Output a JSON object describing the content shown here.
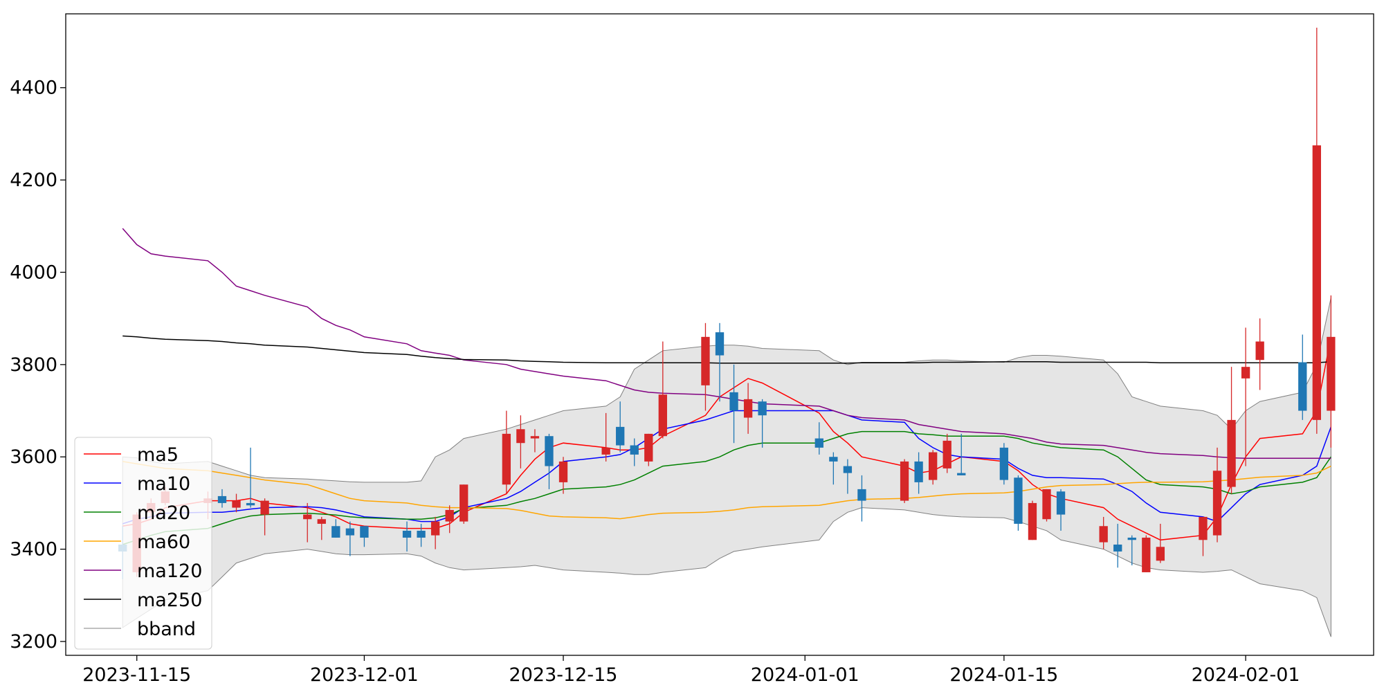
{
  "chart_data": {
    "type": "candlestick",
    "title": "",
    "xlabel": "",
    "ylabel": "",
    "ylim": [
      3170,
      4560
    ],
    "xlim": [
      "2023-11-10",
      "2024-02-10"
    ],
    "y_ticks": [
      3200,
      3400,
      3600,
      3800,
      4000,
      4200,
      4400
    ],
    "x_ticks": [
      "2023-11-15",
      "2023-12-01",
      "2023-12-15",
      "2024-01-01",
      "2024-01-15",
      "2024-02-01"
    ],
    "grid": false,
    "legend_position": "lower-left",
    "colors": {
      "up": "#d62728",
      "down": "#1f77b4",
      "ma5": "#ff0000",
      "ma10": "#0000ff",
      "ma20": "#008000",
      "ma60": "#ffa500",
      "ma120": "#800080",
      "ma250": "#000000",
      "bband_fill": "#d3d3d3",
      "bband_edge": "#808080"
    },
    "legend": [
      {
        "key": "ma5",
        "label": "ma5"
      },
      {
        "key": "ma10",
        "label": "ma10"
      },
      {
        "key": "ma20",
        "label": "ma20"
      },
      {
        "key": "ma60",
        "label": "ma60"
      },
      {
        "key": "ma120",
        "label": "ma120"
      },
      {
        "key": "ma250",
        "label": "ma250"
      },
      {
        "key": "bband",
        "label": "bband"
      }
    ],
    "dates": [
      "2023-11-14",
      "2023-11-15",
      "2023-11-16",
      "2023-11-17",
      "2023-11-20",
      "2023-11-21",
      "2023-11-22",
      "2023-11-23",
      "2023-11-24",
      "2023-11-27",
      "2023-11-28",
      "2023-11-29",
      "2023-11-30",
      "2023-12-01",
      "2023-12-04",
      "2023-12-05",
      "2023-12-06",
      "2023-12-07",
      "2023-12-08",
      "2023-12-11",
      "2023-12-12",
      "2023-12-13",
      "2023-12-14",
      "2023-12-15",
      "2023-12-18",
      "2023-12-19",
      "2023-12-20",
      "2023-12-21",
      "2023-12-22",
      "2023-12-25",
      "2023-12-26",
      "2023-12-27",
      "2023-12-28",
      "2023-12-29",
      "2024-01-02",
      "2024-01-03",
      "2024-01-04",
      "2024-01-05",
      "2024-01-08",
      "2024-01-09",
      "2024-01-10",
      "2024-01-11",
      "2024-01-12",
      "2024-01-15",
      "2024-01-16",
      "2024-01-17",
      "2024-01-18",
      "2024-01-19",
      "2024-01-22",
      "2024-01-23",
      "2024-01-24",
      "2024-01-25",
      "2024-01-26",
      "2024-01-29",
      "2024-01-30",
      "2024-01-31",
      "2024-02-01",
      "2024-02-02",
      "2024-02-05",
      "2024-02-06",
      "2024-02-07"
    ],
    "open": [
      3410,
      3350,
      3480,
      3500,
      3500,
      3515,
      3490,
      3500,
      3475,
      3465,
      3455,
      3450,
      3445,
      3450,
      3440,
      3440,
      3430,
      3460,
      3460,
      3540,
      3630,
      3640,
      3645,
      3545,
      3605,
      3665,
      3625,
      3590,
      3645,
      3755,
      3870,
      3740,
      3685,
      3720,
      3640,
      3600,
      3580,
      3530,
      3505,
      3590,
      3550,
      3575,
      3565,
      3620,
      3555,
      3420,
      3465,
      3525,
      3415,
      3410,
      3425,
      3350,
      3375,
      3420,
      3430,
      3535,
      3770,
      3810,
      3805,
      3680,
      3700
    ],
    "high": [
      3450,
      3480,
      3510,
      3535,
      3525,
      3530,
      3520,
      3620,
      3510,
      3500,
      3470,
      3465,
      3460,
      3450,
      3460,
      3455,
      3470,
      3495,
      3540,
      3700,
      3690,
      3660,
      3650,
      3600,
      3695,
      3720,
      3640,
      3650,
      3850,
      3890,
      3890,
      3800,
      3760,
      3725,
      3675,
      3610,
      3595,
      3560,
      3595,
      3610,
      3615,
      3650,
      3650,
      3630,
      3560,
      3505,
      3530,
      3530,
      3470,
      3455,
      3430,
      3430,
      3455,
      3470,
      3620,
      3795,
      3880,
      3900,
      3865,
      4530,
      3950
    ],
    "low": [
      3335,
      3340,
      3470,
      3495,
      3465,
      3490,
      3480,
      3490,
      3430,
      3415,
      3420,
      3425,
      3385,
      3405,
      3395,
      3405,
      3400,
      3435,
      3455,
      3520,
      3575,
      3610,
      3530,
      3520,
      3590,
      3610,
      3580,
      3580,
      3640,
      3700,
      3720,
      3630,
      3650,
      3620,
      3605,
      3540,
      3520,
      3460,
      3500,
      3520,
      3540,
      3565,
      3560,
      3540,
      3440,
      3420,
      3460,
      3440,
      3400,
      3360,
      3365,
      3350,
      3370,
      3385,
      3415,
      3520,
      3580,
      3745,
      3680,
      3650,
      3620
    ],
    "close": [
      3395,
      3475,
      3500,
      3525,
      3510,
      3500,
      3505,
      3495,
      3505,
      3475,
      3465,
      3425,
      3430,
      3425,
      3425,
      3425,
      3460,
      3485,
      3540,
      3650,
      3660,
      3645,
      3580,
      3590,
      3620,
      3625,
      3605,
      3650,
      3735,
      3860,
      3820,
      3700,
      3725,
      3690,
      3620,
      3590,
      3565,
      3505,
      3590,
      3545,
      3610,
      3635,
      3560,
      3550,
      3455,
      3500,
      3530,
      3475,
      3450,
      3395,
      3420,
      3425,
      3405,
      3470,
      3570,
      3680,
      3795,
      3850,
      3700,
      4275,
      3860
    ],
    "ma5": [
      3450,
      3455,
      3465,
      3490,
      3505,
      3505,
      3505,
      3510,
      3500,
      3490,
      3480,
      3470,
      3455,
      3450,
      3445,
      3445,
      3445,
      3455,
      3480,
      3520,
      3560,
      3595,
      3620,
      3630,
      3620,
      3615,
      3615,
      3620,
      3645,
      3690,
      3730,
      3750,
      3770,
      3760,
      3695,
      3655,
      3630,
      3600,
      3580,
      3565,
      3570,
      3585,
      3600,
      3590,
      3570,
      3540,
      3520,
      3510,
      3490,
      3465,
      3450,
      3435,
      3420,
      3430,
      3470,
      3540,
      3600,
      3640,
      3650,
      3700,
      3860
    ],
    "ma10": [
      3455,
      3465,
      3470,
      3478,
      3480,
      3480,
      3483,
      3487,
      3490,
      3492,
      3490,
      3485,
      3478,
      3470,
      3465,
      3460,
      3460,
      3470,
      3490,
      3510,
      3525,
      3545,
      3565,
      3590,
      3600,
      3605,
      3620,
      3640,
      3660,
      3680,
      3690,
      3700,
      3700,
      3700,
      3700,
      3700,
      3690,
      3680,
      3675,
      3640,
      3620,
      3605,
      3600,
      3595,
      3575,
      3560,
      3555,
      3555,
      3552,
      3540,
      3525,
      3500,
      3480,
      3470,
      3460,
      3490,
      3520,
      3540,
      3560,
      3580,
      3665
    ],
    "ma20": [
      3410,
      3420,
      3430,
      3438,
      3445,
      3455,
      3465,
      3472,
      3475,
      3478,
      3476,
      3474,
      3470,
      3468,
      3465,
      3465,
      3468,
      3475,
      3488,
      3495,
      3503,
      3510,
      3520,
      3530,
      3535,
      3540,
      3550,
      3565,
      3580,
      3590,
      3600,
      3615,
      3625,
      3630,
      3630,
      3640,
      3650,
      3655,
      3655,
      3650,
      3648,
      3645,
      3645,
      3645,
      3640,
      3630,
      3625,
      3620,
      3615,
      3600,
      3575,
      3550,
      3540,
      3535,
      3530,
      3520,
      3525,
      3535,
      3545,
      3555,
      3600
    ],
    "ma60": [
      3590,
      3585,
      3580,
      3575,
      3570,
      3565,
      3560,
      3555,
      3550,
      3540,
      3530,
      3520,
      3510,
      3505,
      3500,
      3495,
      3492,
      3490,
      3490,
      3488,
      3484,
      3478,
      3472,
      3470,
      3468,
      3466,
      3470,
      3475,
      3478,
      3480,
      3482,
      3485,
      3490,
      3492,
      3495,
      3500,
      3505,
      3508,
      3510,
      3512,
      3515,
      3518,
      3520,
      3522,
      3525,
      3530,
      3535,
      3538,
      3540,
      3542,
      3544,
      3545,
      3545,
      3546,
      3548,
      3550,
      3553,
      3556,
      3560,
      3565,
      3580
    ],
    "ma120": [
      4095,
      4060,
      4040,
      4035,
      4025,
      4000,
      3970,
      3960,
      3950,
      3925,
      3900,
      3885,
      3875,
      3860,
      3845,
      3830,
      3825,
      3820,
      3810,
      3800,
      3790,
      3785,
      3780,
      3775,
      3765,
      3755,
      3745,
      3740,
      3738,
      3735,
      3730,
      3725,
      3720,
      3715,
      3710,
      3700,
      3690,
      3685,
      3680,
      3670,
      3665,
      3660,
      3655,
      3650,
      3645,
      3640,
      3632,
      3628,
      3625,
      3620,
      3615,
      3610,
      3607,
      3603,
      3600,
      3598,
      3597,
      3597,
      3597,
      3597,
      3597
    ],
    "ma250": [
      3862,
      3860,
      3857,
      3855,
      3852,
      3850,
      3847,
      3845,
      3842,
      3838,
      3835,
      3832,
      3829,
      3826,
      3822,
      3818,
      3815,
      3813,
      3811,
      3810,
      3808,
      3807,
      3806,
      3805,
      3804,
      3804,
      3804,
      3804,
      3804,
      3804,
      3803,
      3803,
      3803,
      3803,
      3803,
      3803,
      3803,
      3804,
      3804,
      3804,
      3805,
      3805,
      3805,
      3806,
      3806,
      3806,
      3806,
      3805,
      3805,
      3805,
      3805,
      3805,
      3804,
      3804,
      3804,
      3804,
      3804,
      3804,
      3804,
      3804,
      3806
    ],
    "bb_upper": [
      3600,
      3598,
      3590,
      3585,
      3590,
      3580,
      3570,
      3560,
      3555,
      3552,
      3550,
      3548,
      3546,
      3545,
      3545,
      3548,
      3600,
      3615,
      3640,
      3660,
      3670,
      3680,
      3690,
      3700,
      3710,
      3730,
      3790,
      3810,
      3830,
      3840,
      3842,
      3842,
      3840,
      3835,
      3830,
      3810,
      3800,
      3805,
      3805,
      3808,
      3810,
      3810,
      3808,
      3805,
      3815,
      3820,
      3820,
      3818,
      3810,
      3780,
      3730,
      3720,
      3710,
      3700,
      3690,
      3660,
      3700,
      3720,
      3740,
      3800,
      3945
    ],
    "bb_lower": [
      3230,
      3250,
      3270,
      3290,
      3310,
      3340,
      3370,
      3380,
      3390,
      3400,
      3395,
      3390,
      3388,
      3388,
      3390,
      3385,
      3370,
      3360,
      3355,
      3360,
      3362,
      3365,
      3360,
      3355,
      3350,
      3348,
      3345,
      3345,
      3350,
      3360,
      3380,
      3395,
      3400,
      3405,
      3420,
      3460,
      3480,
      3490,
      3485,
      3480,
      3475,
      3472,
      3470,
      3468,
      3460,
      3450,
      3440,
      3420,
      3400,
      3385,
      3370,
      3360,
      3355,
      3350,
      3352,
      3355,
      3340,
      3325,
      3310,
      3295,
      3210
    ]
  }
}
